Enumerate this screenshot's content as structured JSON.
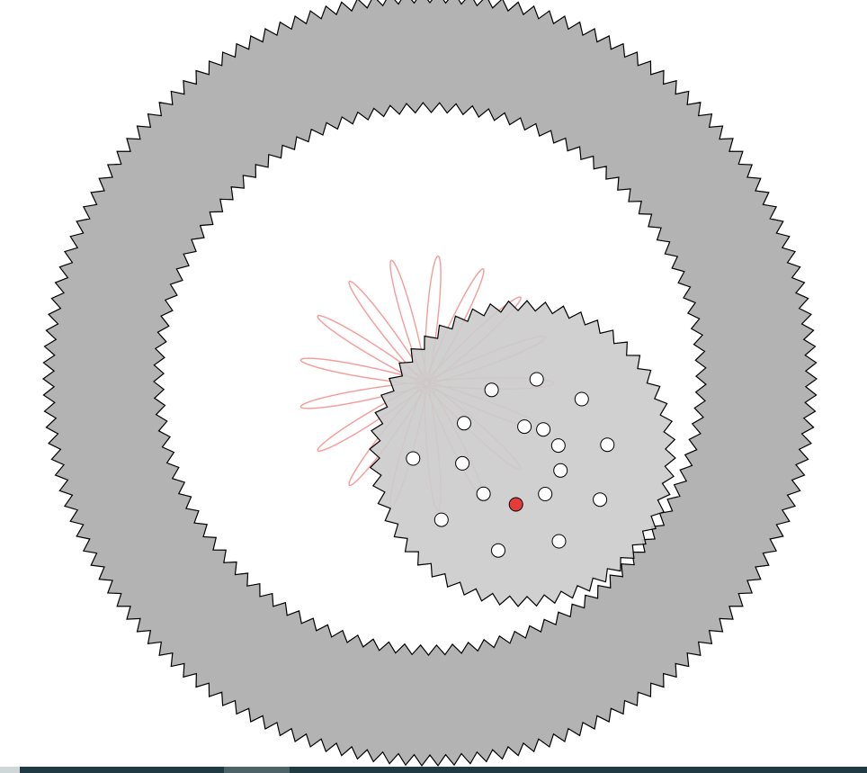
{
  "app": {
    "kind": "spirograph-toy"
  },
  "ring": {
    "outer_teeth": 150,
    "inner_teeth": 105,
    "color": "#b3b3b3",
    "outline": "#000000"
  },
  "wheel": {
    "teeth": 52,
    "color": "#cccccc",
    "outline": "#000000",
    "hole_count": 18,
    "selected_hole": 5,
    "hole_fill": "#ffffff",
    "selected_hole_fill": "#e53b3b"
  },
  "pen": {
    "color": "#e8231f",
    "loops": 24
  },
  "taskbar": {
    "background": "#1f3a40"
  }
}
